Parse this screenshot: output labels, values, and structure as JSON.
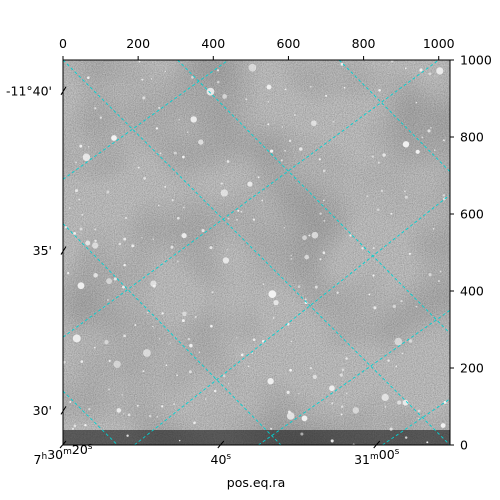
{
  "chart_data": {
    "type": "image",
    "xlabel": "pos.eq.ra",
    "ylabel": "",
    "pixel_axes": {
      "top_ticks": [
        0,
        200,
        400,
        600,
        800,
        1000
      ],
      "right_ticks": [
        0,
        200,
        400,
        600,
        800,
        1000
      ],
      "xlim": [
        0,
        1030
      ],
      "ylim": [
        0,
        1000
      ]
    },
    "ra_ticks": [
      {
        "h": "7",
        "m": "30",
        "s": "20",
        "pos": [
          0,
          0
        ]
      },
      {
        "s": "40",
        "pos": [
          420,
          0
        ]
      },
      {
        "m": "31",
        "s": "00s",
        "pos": [
          835,
          0
        ]
      }
    ],
    "dec_ticks": [
      {
        "label": "-11°40'",
        "pos": [
          0,
          920
        ]
      },
      {
        "label": "35'",
        "pos": [
          0,
          505
        ]
      },
      {
        "label": "30'",
        "pos": [
          0,
          90
        ]
      }
    ],
    "grid": {
      "color": "#00d2d2",
      "style": "dashed",
      "desc_lines": [
        {
          "x0": 0,
          "y0": 1000,
          "x1": 1030,
          "y1": 0
        },
        {
          "x0": 0,
          "y0": 575,
          "x1": 580,
          "y1": 0
        },
        {
          "x0": 305,
          "y0": 1000,
          "x1": 1030,
          "y1": 290
        },
        {
          "x0": 0,
          "y0": 140,
          "x1": 145,
          "y1": 0
        },
        {
          "x0": 735,
          "y0": 1000,
          "x1": 1030,
          "y1": 710
        }
      ],
      "asc_lines": [
        {
          "x0": 0,
          "y0": 1000,
          "x1": 1030,
          "y1": 0
        },
        {
          "x0": 0,
          "y0": 1000,
          "x1": 1030,
          "y1": 0
        }
      ]
    }
  }
}
